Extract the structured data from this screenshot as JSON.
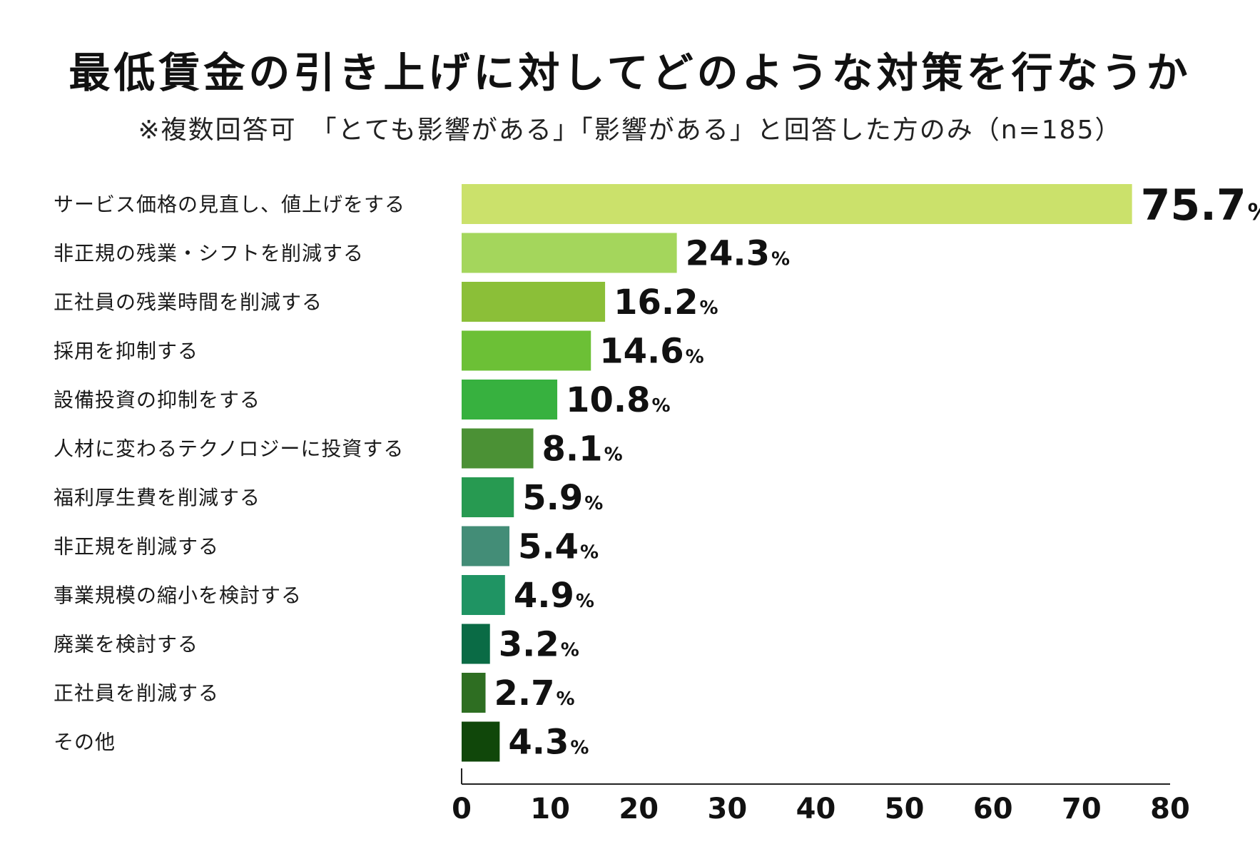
{
  "chart_data": {
    "type": "bar",
    "orientation": "horizontal",
    "title": "最低賃金の引き上げに対してどのような対策を行なうか",
    "subtitle": "※複数回答可　「とても影響がある」「影響がある」と回答した方のみ（n=185）",
    "unit": "%",
    "categories": [
      "サービス価格の見直し、値上げをする",
      "非正規の残業・シフトを削減する",
      "正社員の残業時間を削減する",
      "採用を抑制する",
      "設備投資の抑制をする",
      "人材に変わるテクノロジーに投資する",
      "福利厚生費を削減する",
      "非正規を削減する",
      "事業規模の縮小を検討する",
      "廃業を検討する",
      "正社員を削減する",
      "その他"
    ],
    "values": [
      75.7,
      24.3,
      16.2,
      14.6,
      10.8,
      8.1,
      5.9,
      5.4,
      4.9,
      3.2,
      2.7,
      4.3
    ],
    "value_labels": [
      "75.7",
      "24.3",
      "16.2",
      "14.6",
      "10.8",
      "8.1",
      "5.9",
      "5.4",
      "4.9",
      "3.2",
      "2.7",
      "4.3"
    ],
    "colors": [
      "#cbe16b",
      "#a4d65c",
      "#8bbf38",
      "#6cc036",
      "#37b13f",
      "#4b9135",
      "#279a51",
      "#438d77",
      "#1f9463",
      "#0a6b45",
      "#2e6e22",
      "#10470a"
    ],
    "xlim": [
      0,
      80
    ],
    "xticks": [
      0,
      10,
      20,
      30,
      40,
      50,
      60,
      70,
      80
    ],
    "xtick_labels": [
      "0",
      "10",
      "20",
      "30",
      "40",
      "50",
      "60",
      "70",
      "80"
    ],
    "grid": false,
    "legend": "none"
  }
}
